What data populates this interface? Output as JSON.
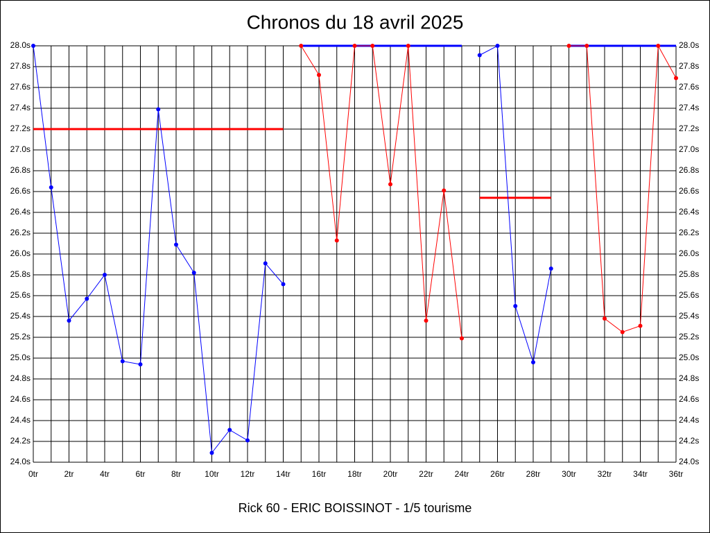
{
  "chart_data": {
    "type": "line",
    "title": "Chronos du 18 avril 2025",
    "subtitle": "Rick 60 - ERIC BOISSINOT - 1/5 tourisme",
    "xlim": [
      0,
      36
    ],
    "ylim": [
      24.0,
      28.0
    ],
    "grid": true,
    "xticks": [
      {
        "value": 0,
        "label": "0tr"
      },
      {
        "value": 2,
        "label": "2tr"
      },
      {
        "value": 4,
        "label": "4tr"
      },
      {
        "value": 6,
        "label": "6tr"
      },
      {
        "value": 8,
        "label": "8tr"
      },
      {
        "value": 10,
        "label": "10tr"
      },
      {
        "value": 12,
        "label": "12tr"
      },
      {
        "value": 14,
        "label": "14tr"
      },
      {
        "value": 16,
        "label": "16tr"
      },
      {
        "value": 18,
        "label": "18tr"
      },
      {
        "value": 20,
        "label": "20tr"
      },
      {
        "value": 22,
        "label": "22tr"
      },
      {
        "value": 24,
        "label": "24tr"
      },
      {
        "value": 26,
        "label": "26tr"
      },
      {
        "value": 28,
        "label": "28tr"
      },
      {
        "value": 30,
        "label": "30tr"
      },
      {
        "value": 32,
        "label": "32tr"
      },
      {
        "value": 34,
        "label": "34tr"
      },
      {
        "value": 36,
        "label": "36tr"
      }
    ],
    "x_minor_ticks": [
      1,
      3,
      5,
      7,
      9,
      11,
      13,
      15,
      17,
      19,
      21,
      23,
      25,
      27,
      29,
      31,
      33,
      35
    ],
    "yticks": [
      {
        "value": 24.0,
        "label": "24.0s"
      },
      {
        "value": 24.2,
        "label": "24.2s"
      },
      {
        "value": 24.4,
        "label": "24.4s"
      },
      {
        "value": 24.6,
        "label": "24.6s"
      },
      {
        "value": 24.8,
        "label": "24.8s"
      },
      {
        "value": 25.0,
        "label": "25.0s"
      },
      {
        "value": 25.2,
        "label": "25.2s"
      },
      {
        "value": 25.4,
        "label": "25.4s"
      },
      {
        "value": 25.6,
        "label": "25.6s"
      },
      {
        "value": 25.8,
        "label": "25.8s"
      },
      {
        "value": 26.0,
        "label": "26.0s"
      },
      {
        "value": 26.2,
        "label": "26.2s"
      },
      {
        "value": 26.4,
        "label": "26.4s"
      },
      {
        "value": 26.6,
        "label": "26.6s"
      },
      {
        "value": 26.8,
        "label": "26.8s"
      },
      {
        "value": 27.0,
        "label": "27.0s"
      },
      {
        "value": 27.2,
        "label": "27.2s"
      },
      {
        "value": 27.4,
        "label": "27.4s"
      },
      {
        "value": 27.6,
        "label": "27.6s"
      },
      {
        "value": 27.8,
        "label": "27.8s"
      },
      {
        "value": 28.0,
        "label": "28.0s"
      }
    ],
    "series": [
      {
        "color": "#0000ff",
        "x": [
          0,
          1,
          2,
          3,
          4,
          5,
          6,
          7,
          8,
          9,
          10,
          11,
          12,
          13,
          14
        ],
        "values": [
          28.0,
          26.64,
          25.36,
          25.57,
          25.8,
          24.97,
          24.94,
          27.39,
          26.09,
          25.82,
          24.09,
          24.31,
          24.21,
          25.91,
          25.71
        ]
      },
      {
        "color": "#ff0000",
        "x": [
          15,
          16,
          17,
          18,
          19,
          20,
          21,
          22,
          23,
          24
        ],
        "values": [
          28.0,
          27.72,
          26.13,
          28.0,
          28.0,
          26.67,
          28.0,
          25.36,
          26.61,
          25.19
        ]
      },
      {
        "color": "#0000ff",
        "x": [
          25,
          26,
          27,
          28,
          29
        ],
        "values": [
          27.91,
          28.0,
          25.5,
          24.96,
          25.86
        ]
      },
      {
        "color": "#ff0000",
        "x": [
          30,
          31,
          32,
          33,
          34,
          35,
          36
        ],
        "values": [
          28.0,
          28.0,
          25.38,
          25.25,
          25.31,
          28.0,
          27.69
        ]
      }
    ],
    "average_lines": [
      {
        "color": "#ff0000",
        "x": [
          0,
          14
        ],
        "value": 27.2
      },
      {
        "color": "#0000ff",
        "x": [
          15,
          24
        ],
        "value": 28.0
      },
      {
        "color": "#ff0000",
        "x": [
          25,
          29
        ],
        "value": 26.54
      },
      {
        "color": "#0000ff",
        "x": [
          30,
          36
        ],
        "value": 28.0
      }
    ]
  }
}
